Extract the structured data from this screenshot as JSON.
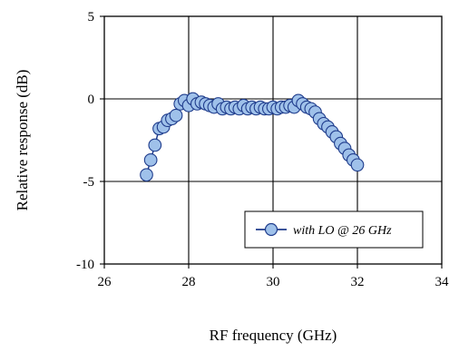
{
  "chart_data": {
    "type": "scatter",
    "xlabel": "RF frequency (GHz)",
    "ylabel": "Relative response (dB)",
    "xlim": [
      26,
      34
    ],
    "ylim": [
      -10,
      5
    ],
    "xticks": [
      "26",
      "28",
      "30",
      "32",
      "34"
    ],
    "yticks": [
      "5",
      "0",
      "-5",
      "-10"
    ],
    "grid": true,
    "legend_position": "bottom-right",
    "series": [
      {
        "name": "with LO @ 26 GHz",
        "color": "#9fc1ea",
        "edge_color": "#1f3c8c",
        "marker": "circle",
        "connected": true,
        "x": [
          27.0,
          27.1,
          27.2,
          27.3,
          27.4,
          27.5,
          27.6,
          27.7,
          27.8,
          27.9,
          28.0,
          28.1,
          28.2,
          28.3,
          28.4,
          28.5,
          28.6,
          28.7,
          28.8,
          28.9,
          29.0,
          29.1,
          29.2,
          29.3,
          29.4,
          29.5,
          29.6,
          29.7,
          29.8,
          29.9,
          30.0,
          30.1,
          30.2,
          30.3,
          30.4,
          30.5,
          30.6,
          30.7,
          30.8,
          30.9,
          31.0,
          31.1,
          31.2,
          31.3,
          31.4,
          31.5,
          31.6,
          31.7,
          31.8,
          31.9,
          32.0
        ],
        "y": [
          -4.6,
          -3.7,
          -2.8,
          -1.8,
          -1.7,
          -1.3,
          -1.2,
          -1.0,
          -0.3,
          -0.1,
          -0.4,
          0.0,
          -0.3,
          -0.2,
          -0.3,
          -0.4,
          -0.5,
          -0.3,
          -0.6,
          -0.5,
          -0.6,
          -0.5,
          -0.6,
          -0.4,
          -0.6,
          -0.5,
          -0.6,
          -0.5,
          -0.6,
          -0.6,
          -0.5,
          -0.6,
          -0.5,
          -0.5,
          -0.4,
          -0.5,
          -0.1,
          -0.3,
          -0.5,
          -0.6,
          -0.8,
          -1.2,
          -1.5,
          -1.7,
          -2.0,
          -2.3,
          -2.7,
          -3.0,
          -3.4,
          -3.7,
          -4.0
        ]
      }
    ]
  }
}
